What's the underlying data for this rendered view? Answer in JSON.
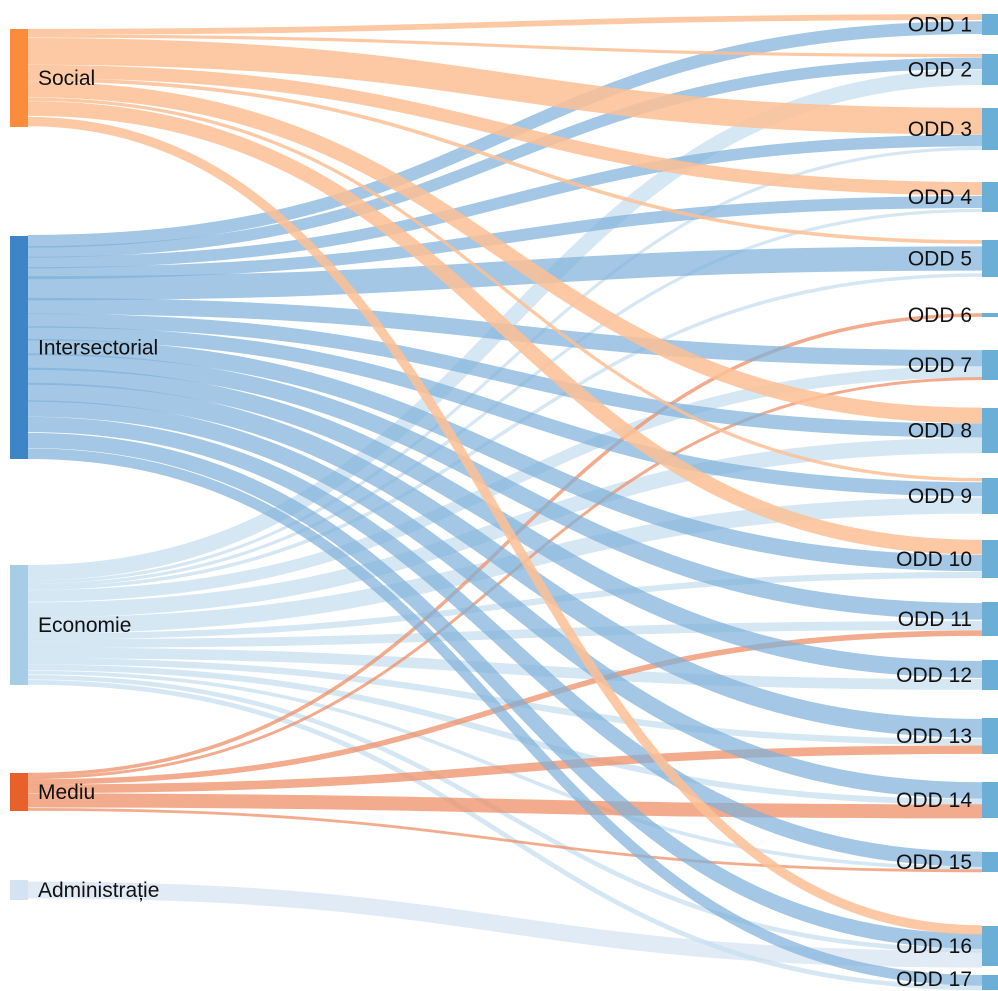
{
  "colors": {
    "social": "#fb8c3c",
    "social_link": "#fdbf94",
    "intersectorial": "#3d85c6",
    "intersectorial_link": "#7fb1d9",
    "economie": "#a6cde6",
    "economie_link": "#c9e0f0",
    "mediu": "#e8602a",
    "mediu_link": "#ee8f66",
    "administratie": "#d3e3f2",
    "administratie_link": "#dbe8f5",
    "target": "#6baed6"
  },
  "sources": [
    {
      "id": "social",
      "label": "Social"
    },
    {
      "id": "intersectorial",
      "label": "Intersectorial"
    },
    {
      "id": "economie",
      "label": "Economie"
    },
    {
      "id": "mediu",
      "label": "Mediu"
    },
    {
      "id": "administratie",
      "label": "Administrație"
    }
  ],
  "targets": [
    {
      "id": "odd1",
      "label": "ODD 1"
    },
    {
      "id": "odd2",
      "label": "ODD 2"
    },
    {
      "id": "odd3",
      "label": "ODD 3"
    },
    {
      "id": "odd4",
      "label": "ODD 4"
    },
    {
      "id": "odd5",
      "label": "ODD 5"
    },
    {
      "id": "odd6",
      "label": "ODD 6"
    },
    {
      "id": "odd7",
      "label": "ODD 7"
    },
    {
      "id": "odd8",
      "label": "ODD 8"
    },
    {
      "id": "odd9",
      "label": "ODD 9"
    },
    {
      "id": "odd10",
      "label": "ODD 10"
    },
    {
      "id": "odd11",
      "label": "ODD 11"
    },
    {
      "id": "odd12",
      "label": "ODD 12"
    },
    {
      "id": "odd13",
      "label": "ODD 13"
    },
    {
      "id": "odd14",
      "label": "ODD 14"
    },
    {
      "id": "odd15",
      "label": "ODD 15"
    },
    {
      "id": "odd16",
      "label": "ODD 16"
    },
    {
      "id": "odd17",
      "label": "ODD 17"
    }
  ],
  "links": [
    {
      "source": "social",
      "target": "odd1",
      "value": 5
    },
    {
      "source": "social",
      "target": "odd2",
      "value": 3
    },
    {
      "source": "social",
      "target": "odd3",
      "value": 25
    },
    {
      "source": "social",
      "target": "odd4",
      "value": 12
    },
    {
      "source": "social",
      "target": "odd5",
      "value": 3
    },
    {
      "source": "social",
      "target": "odd8",
      "value": 15
    },
    {
      "source": "social",
      "target": "odd9",
      "value": 3
    },
    {
      "source": "social",
      "target": "odd10",
      "value": 14
    },
    {
      "source": "social",
      "target": "odd16",
      "value": 10
    },
    {
      "source": "intersectorial",
      "target": "odd1",
      "value": 12
    },
    {
      "source": "intersectorial",
      "target": "odd2",
      "value": 12
    },
    {
      "source": "intersectorial",
      "target": "odd3",
      "value": 12
    },
    {
      "source": "intersectorial",
      "target": "odd4",
      "value": 12
    },
    {
      "source": "intersectorial",
      "target": "odd5",
      "value": 22
    },
    {
      "source": "intersectorial",
      "target": "odd7",
      "value": 18
    },
    {
      "source": "intersectorial",
      "target": "odd8",
      "value": 15
    },
    {
      "source": "intersectorial",
      "target": "odd9",
      "value": 14
    },
    {
      "source": "intersectorial",
      "target": "odd10",
      "value": 17
    },
    {
      "source": "intersectorial",
      "target": "odd11",
      "value": 16
    },
    {
      "source": "intersectorial",
      "target": "odd12",
      "value": 17
    },
    {
      "source": "intersectorial",
      "target": "odd13",
      "value": 19
    },
    {
      "source": "intersectorial",
      "target": "odd14",
      "value": 18
    },
    {
      "source": "intersectorial",
      "target": "odd15",
      "value": 18
    },
    {
      "source": "intersectorial",
      "target": "odd16",
      "value": 18
    },
    {
      "source": "intersectorial",
      "target": "odd17",
      "value": 12
    },
    {
      "source": "economie",
      "target": "odd2",
      "value": 15
    },
    {
      "source": "economie",
      "target": "odd3",
      "value": 3
    },
    {
      "source": "economie",
      "target": "odd4",
      "value": 3
    },
    {
      "source": "economie",
      "target": "odd5",
      "value": 3
    },
    {
      "source": "economie",
      "target": "odd7",
      "value": 12
    },
    {
      "source": "economie",
      "target": "odd8",
      "value": 15
    },
    {
      "source": "economie",
      "target": "odd9",
      "value": 15
    },
    {
      "source": "economie",
      "target": "odd10",
      "value": 6
    },
    {
      "source": "economie",
      "target": "odd11",
      "value": 8
    },
    {
      "source": "economie",
      "target": "odd12",
      "value": 10
    },
    {
      "source": "economie",
      "target": "odd13",
      "value": 6
    },
    {
      "source": "economie",
      "target": "odd14",
      "value": 6
    },
    {
      "source": "economie",
      "target": "odd15",
      "value": 4
    },
    {
      "source": "economie",
      "target": "odd16",
      "value": 5
    },
    {
      "source": "economie",
      "target": "odd17",
      "value": 5
    },
    {
      "source": "mediu",
      "target": "odd6",
      "value": 3
    },
    {
      "source": "mediu",
      "target": "odd7",
      "value": 3
    },
    {
      "source": "mediu",
      "target": "odd11",
      "value": 5
    },
    {
      "source": "mediu",
      "target": "odd13",
      "value": 8
    },
    {
      "source": "mediu",
      "target": "odd14",
      "value": 14
    },
    {
      "source": "mediu",
      "target": "odd15",
      "value": 3
    },
    {
      "source": "administratie",
      "target": "odd16",
      "value": 17
    }
  ]
}
